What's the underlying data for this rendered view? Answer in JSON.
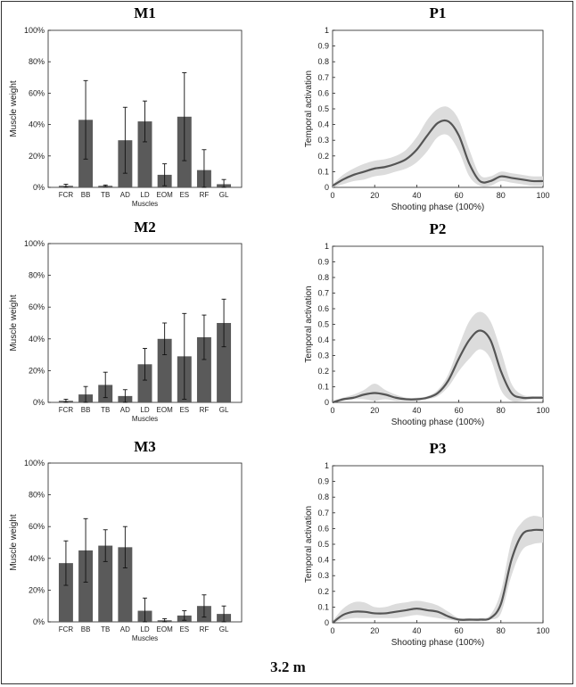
{
  "footer": "3.2 m",
  "bar_ticks": [
    "0%",
    "20%",
    "40%",
    "60%",
    "80%",
    "100%"
  ],
  "line_ticks_y": [
    "0",
    "0.1",
    "0.2",
    "0.3",
    "0.4",
    "0.5",
    "0.6",
    "0.7",
    "0.8",
    "0.9",
    "1"
  ],
  "line_ticks_x": [
    "0",
    "20",
    "40",
    "60",
    "80",
    "100"
  ],
  "colors": {
    "bar": "#5a5a5a",
    "line": "#555555",
    "band": "#dcdcdc"
  },
  "chart_data": [
    {
      "type": "bar",
      "title": "M1",
      "xlabel": "Muscles",
      "ylabel": "Muscle weight",
      "ylim": [
        0,
        100
      ],
      "categories": [
        "FCR",
        "BB",
        "TB",
        "AD",
        "LD",
        "EOM",
        "ES",
        "RF",
        "GL"
      ],
      "values": [
        1,
        43,
        1,
        30,
        42,
        8,
        45,
        11,
        2
      ],
      "errors": [
        1,
        25,
        0.5,
        21,
        13,
        7,
        28,
        13,
        3
      ]
    },
    {
      "type": "line",
      "title": "P1",
      "xlabel": "Shooting phase (100%)",
      "ylabel": "Temporal activation",
      "xlim": [
        0,
        100
      ],
      "ylim": [
        0,
        1
      ],
      "x": [
        0,
        5,
        10,
        15,
        20,
        25,
        30,
        35,
        40,
        45,
        50,
        55,
        60,
        65,
        70,
        75,
        80,
        85,
        90,
        95,
        100
      ],
      "y": [
        0.01,
        0.05,
        0.08,
        0.1,
        0.12,
        0.13,
        0.15,
        0.18,
        0.24,
        0.33,
        0.41,
        0.42,
        0.33,
        0.15,
        0.04,
        0.04,
        0.07,
        0.06,
        0.05,
        0.04,
        0.04
      ],
      "upper": [
        0.02,
        0.08,
        0.12,
        0.15,
        0.17,
        0.18,
        0.2,
        0.24,
        0.32,
        0.43,
        0.5,
        0.51,
        0.43,
        0.24,
        0.08,
        0.07,
        0.1,
        0.09,
        0.08,
        0.07,
        0.07
      ],
      "lower": [
        0.0,
        0.02,
        0.04,
        0.05,
        0.07,
        0.08,
        0.1,
        0.12,
        0.16,
        0.23,
        0.32,
        0.33,
        0.23,
        0.07,
        0.01,
        0.01,
        0.04,
        0.03,
        0.02,
        0.01,
        0.01
      ]
    },
    {
      "type": "bar",
      "title": "M2",
      "xlabel": "Muscles",
      "ylabel": "Muscle weight",
      "ylim": [
        0,
        100
      ],
      "categories": [
        "FCR",
        "BB",
        "TB",
        "AD",
        "LD",
        "EOM",
        "ES",
        "RF",
        "GL"
      ],
      "values": [
        1,
        5,
        11,
        4,
        24,
        40,
        29,
        41,
        50
      ],
      "errors": [
        1,
        5,
        8,
        4,
        10,
        10,
        27,
        14,
        15
      ]
    },
    {
      "type": "line",
      "title": "P2",
      "xlabel": "Shooting phase (100%)",
      "ylabel": "Temporal activation",
      "xlim": [
        0,
        100
      ],
      "ylim": [
        0,
        1
      ],
      "x": [
        0,
        5,
        10,
        15,
        20,
        25,
        30,
        35,
        40,
        45,
        50,
        55,
        60,
        65,
        70,
        75,
        80,
        85,
        90,
        95,
        100
      ],
      "y": [
        0.0,
        0.02,
        0.03,
        0.05,
        0.06,
        0.05,
        0.03,
        0.02,
        0.02,
        0.03,
        0.06,
        0.14,
        0.28,
        0.4,
        0.46,
        0.4,
        0.2,
        0.06,
        0.03,
        0.03,
        0.03
      ],
      "upper": [
        0.01,
        0.03,
        0.05,
        0.08,
        0.12,
        0.08,
        0.05,
        0.03,
        0.03,
        0.04,
        0.08,
        0.18,
        0.36,
        0.52,
        0.58,
        0.52,
        0.33,
        0.12,
        0.05,
        0.04,
        0.04
      ],
      "lower": [
        0.0,
        0.01,
        0.02,
        0.02,
        0.01,
        0.02,
        0.01,
        0.01,
        0.01,
        0.02,
        0.04,
        0.1,
        0.2,
        0.28,
        0.34,
        0.28,
        0.08,
        0.01,
        0.01,
        0.02,
        0.02
      ]
    },
    {
      "type": "bar",
      "title": "M3",
      "xlabel": "Muscles",
      "ylabel": "Muscle weight",
      "ylim": [
        0,
        100
      ],
      "categories": [
        "FCR",
        "BB",
        "TB",
        "AD",
        "LD",
        "EOM",
        "ES",
        "RF",
        "GL"
      ],
      "values": [
        37,
        45,
        48,
        47,
        7,
        1,
        4,
        10,
        5
      ],
      "errors": [
        14,
        20,
        10,
        13,
        8,
        1,
        3,
        7,
        5
      ]
    },
    {
      "type": "line",
      "title": "P3",
      "xlabel": "Shooting phase (100%)",
      "ylabel": "Temporal activation",
      "xlim": [
        0,
        100
      ],
      "ylim": [
        0,
        1
      ],
      "x": [
        0,
        5,
        10,
        15,
        20,
        25,
        30,
        35,
        40,
        45,
        50,
        55,
        60,
        65,
        70,
        75,
        80,
        85,
        90,
        95,
        100
      ],
      "y": [
        0.0,
        0.05,
        0.07,
        0.07,
        0.06,
        0.06,
        0.07,
        0.08,
        0.09,
        0.08,
        0.07,
        0.04,
        0.02,
        0.02,
        0.02,
        0.03,
        0.12,
        0.4,
        0.56,
        0.59,
        0.59
      ],
      "upper": [
        0.01,
        0.09,
        0.13,
        0.13,
        0.1,
        0.1,
        0.12,
        0.13,
        0.14,
        0.13,
        0.11,
        0.07,
        0.03,
        0.03,
        0.03,
        0.05,
        0.2,
        0.52,
        0.64,
        0.68,
        0.67
      ],
      "lower": [
        0.0,
        0.02,
        0.03,
        0.03,
        0.03,
        0.03,
        0.03,
        0.04,
        0.05,
        0.04,
        0.03,
        0.02,
        0.01,
        0.01,
        0.01,
        0.02,
        0.06,
        0.3,
        0.46,
        0.5,
        0.51
      ]
    }
  ]
}
